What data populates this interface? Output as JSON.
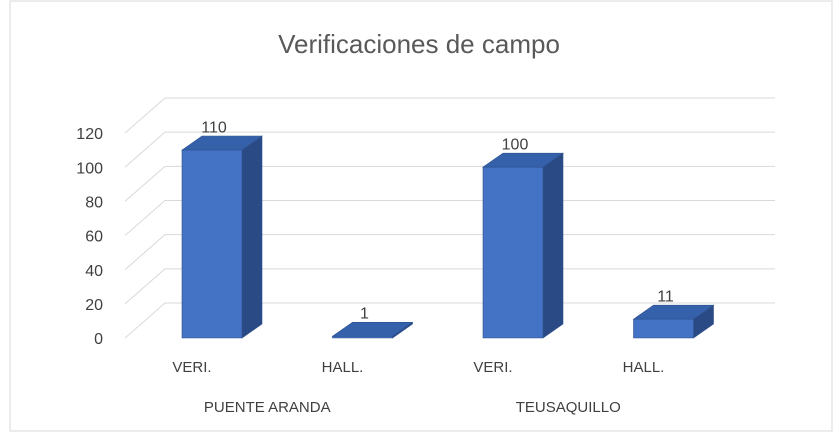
{
  "chart_data": {
    "type": "bar3d",
    "title": "Verificaciones de campo",
    "categories": [
      "VERI.",
      "HALL.",
      "VERI.",
      "HALL."
    ],
    "groups": [
      "PUENTE ARANDA",
      "TEUSAQUILLO"
    ],
    "values": [
      110,
      1,
      100,
      11
    ],
    "color": "#4472c4",
    "ylim": [
      0,
      120
    ],
    "yticks": [
      0,
      20,
      40,
      60,
      80,
      100,
      120
    ],
    "grid": true
  }
}
